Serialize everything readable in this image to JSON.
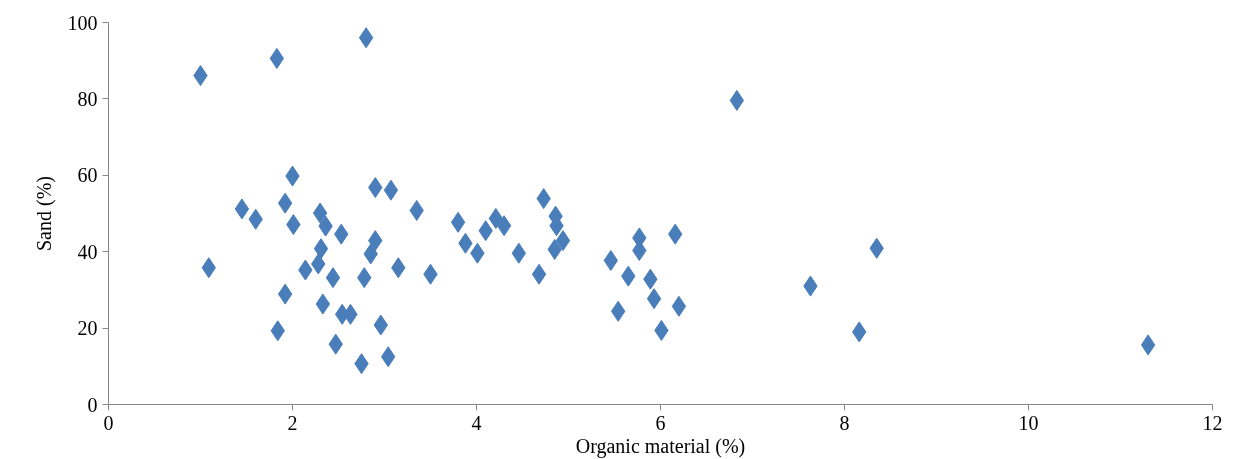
{
  "chart_data": {
    "type": "scatter",
    "xlabel": "Organic material (%)",
    "ylabel": "Sand (%)",
    "xlim": [
      0,
      12
    ],
    "xticks": [
      0,
      2,
      4,
      6,
      8,
      10,
      12
    ],
    "ylim": [
      0,
      100
    ],
    "yticks": [
      0,
      20,
      40,
      60,
      80,
      100
    ],
    "grid": false,
    "marker": "diamond",
    "series": [
      {
        "color": "#4a7ebb",
        "x": [
          1.0,
          1.83,
          2.8,
          2.0,
          1.45,
          1.6,
          1.92,
          2.01,
          2.3,
          2.36,
          2.53,
          2.9,
          3.07,
          3.35,
          3.8,
          3.88,
          4.01,
          4.1,
          4.21,
          4.3,
          4.46,
          4.73,
          4.86,
          4.87,
          4.94,
          4.85,
          4.68,
          1.09,
          2.31,
          2.9,
          2.85,
          2.14,
          2.28,
          2.44,
          2.78,
          3.15,
          3.5,
          1.92,
          2.33,
          2.54,
          2.63,
          2.96,
          1.84,
          2.47,
          2.75,
          3.04,
          5.46,
          5.77,
          5.77,
          6.16,
          5.65,
          5.89,
          5.93,
          5.54,
          6.2,
          6.01,
          6.83,
          8.35,
          7.63,
          8.16,
          11.3
        ],
        "values": [
          86.1,
          90.6,
          96.0,
          59.8,
          51.2,
          48.5,
          52.7,
          47.1,
          50.1,
          46.7,
          44.6,
          56.8,
          56.1,
          50.8,
          47.7,
          42.2,
          39.6,
          45.5,
          48.7,
          46.8,
          39.6,
          53.9,
          49.3,
          46.8,
          42.9,
          40.6,
          34.1,
          35.8,
          40.8,
          42.9,
          39.4,
          35.2,
          36.8,
          33.2,
          33.2,
          35.8,
          34.1,
          28.9,
          26.3,
          23.6,
          23.6,
          20.8,
          19.3,
          15.8,
          10.7,
          12.5,
          37.7,
          43.6,
          40.3,
          44.6,
          33.6,
          32.8,
          27.7,
          24.4,
          25.7,
          19.4,
          79.6,
          40.9,
          31.0,
          19.0,
          15.6
        ]
      }
    ]
  }
}
